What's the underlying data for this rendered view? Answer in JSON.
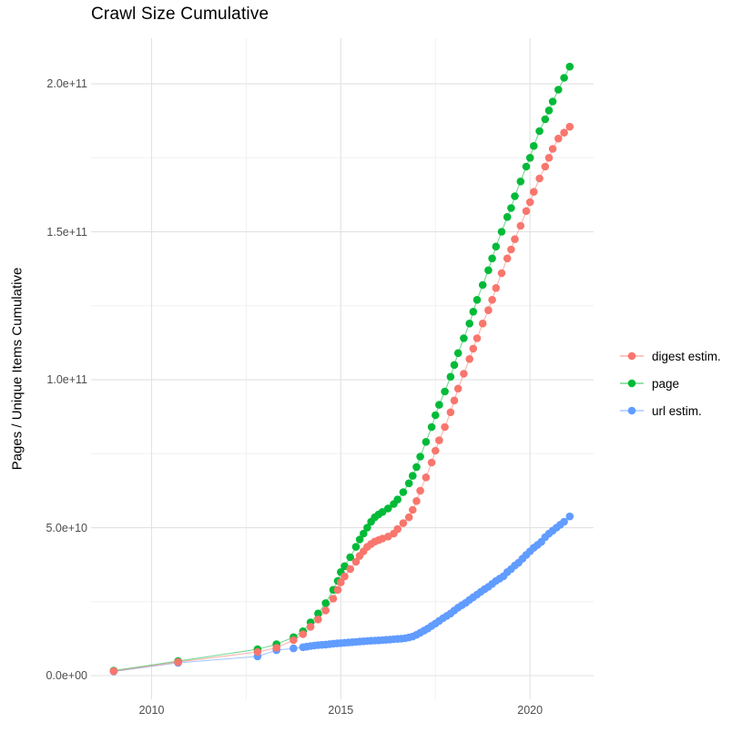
{
  "title": "Crawl Size Cumulative",
  "axes": {
    "y_label": "Pages / Unique Items Cumulative",
    "x_tick_labels": [
      "2010",
      "2015",
      "2020"
    ],
    "y_tick_labels": [
      "0.0e+00",
      "5.0e+10",
      "1.0e+11",
      "1.5e+11",
      "2.0e+11"
    ]
  },
  "legend": {
    "items": [
      {
        "label": "digest estim.",
        "color": "#F8766D"
      },
      {
        "label": "page",
        "color": "#00BA38"
      },
      {
        "label": "url estim.",
        "color": "#619CFF"
      }
    ]
  },
  "colors": {
    "background": "#FFFFFF",
    "grid_major": "#E2E2E2",
    "grid_minor": "#F0F0F0",
    "tick_text": "#4D4D4D",
    "title_text": "#000000"
  },
  "chart_data": {
    "type": "line",
    "title": "Crawl Size Cumulative",
    "xlabel": "",
    "ylabel": "Pages / Unique Items Cumulative",
    "x_domain": [
      2008.4,
      2021.68
    ],
    "y_domain_billions": [
      -8,
      215.4
    ],
    "y_scale_note": "values in billions (1e9) of pages / unique items",
    "grid": true,
    "legend_position": "right",
    "x_ticks": [
      {
        "value": 2010,
        "label": "2010"
      },
      {
        "value": 2015,
        "label": "2015"
      },
      {
        "value": 2020,
        "label": "2020"
      }
    ],
    "x_minor_ticks": [
      2012.5,
      2017.5
    ],
    "y_ticks": [
      {
        "value_billions": 0,
        "label": "0.0e+00"
      },
      {
        "value_billions": 50,
        "label": "5.0e+10"
      },
      {
        "value_billions": 100,
        "label": "1.0e+11"
      },
      {
        "value_billions": 150,
        "label": "1.5e+11"
      },
      {
        "value_billions": 200,
        "label": "2.0e+11"
      }
    ],
    "y_minor_ticks_billions": [
      25,
      75,
      125,
      175
    ],
    "series": [
      {
        "name": "page",
        "color": "#00BA38",
        "x": [
          2009.0,
          2010.7,
          2012.8,
          2013.3,
          2013.75,
          2014.0,
          2014.2,
          2014.4,
          2014.6,
          2014.8,
          2014.92,
          2015.0,
          2015.1,
          2015.25,
          2015.4,
          2015.5,
          2015.6,
          2015.7,
          2015.8,
          2015.9,
          2016.0,
          2016.1,
          2016.25,
          2016.4,
          2016.5,
          2016.65,
          2016.8,
          2016.9,
          2017.0,
          2017.1,
          2017.25,
          2017.4,
          2017.5,
          2017.6,
          2017.75,
          2017.9,
          2018.0,
          2018.1,
          2018.25,
          2018.4,
          2018.5,
          2018.6,
          2018.75,
          2018.9,
          2019.0,
          2019.1,
          2019.25,
          2019.4,
          2019.5,
          2019.6,
          2019.75,
          2019.9,
          2020.0,
          2020.1,
          2020.25,
          2020.4,
          2020.5,
          2020.6,
          2020.75,
          2020.9,
          2021.05
        ],
        "y_billions": [
          1.7,
          4.9,
          8.9,
          10.6,
          13,
          15,
          18,
          21,
          24.5,
          29,
          32,
          35,
          37,
          40,
          43.5,
          46,
          48,
          50,
          52,
          53.5,
          54.5,
          55.3,
          56.5,
          58,
          59.5,
          62,
          65,
          67.5,
          70.5,
          74,
          79,
          84,
          88,
          91.5,
          96,
          101,
          105,
          109,
          114,
          119,
          123,
          127,
          132,
          137,
          141,
          145,
          150,
          155,
          158,
          162,
          167,
          172,
          175,
          179,
          184,
          188,
          191,
          194,
          198,
          202,
          205.8
        ]
      },
      {
        "name": "url estim.",
        "color": "#619CFF",
        "x": [
          2009.0,
          2010.7,
          2012.8,
          2013.3,
          2013.75,
          2014.0,
          2014.1,
          2014.2,
          2014.3,
          2014.4,
          2014.5,
          2014.6,
          2014.7,
          2014.8,
          2014.9,
          2015.0,
          2015.1,
          2015.2,
          2015.3,
          2015.4,
          2015.5,
          2015.6,
          2015.7,
          2015.8,
          2015.9,
          2016.0,
          2016.1,
          2016.2,
          2016.3,
          2016.4,
          2016.5,
          2016.6,
          2016.7,
          2016.8,
          2016.9,
          2017.0,
          2017.1,
          2017.2,
          2017.3,
          2017.4,
          2017.5,
          2017.6,
          2017.7,
          2017.8,
          2017.9,
          2018.0,
          2018.1,
          2018.2,
          2018.3,
          2018.4,
          2018.5,
          2018.6,
          2018.7,
          2018.8,
          2018.9,
          2019.0,
          2019.1,
          2019.2,
          2019.3,
          2019.4,
          2019.5,
          2019.6,
          2019.7,
          2019.8,
          2019.9,
          2020.0,
          2020.1,
          2020.2,
          2020.3,
          2020.4,
          2020.5,
          2020.6,
          2020.7,
          2020.8,
          2020.9,
          2021.05
        ],
        "y_billions": [
          1.4,
          4.3,
          6.5,
          8.6,
          9.2,
          9.6,
          9.8,
          10.0,
          10.15,
          10.3,
          10.4,
          10.5,
          10.65,
          10.8,
          10.9,
          11.0,
          11.1,
          11.2,
          11.3,
          11.4,
          11.5,
          11.6,
          11.7,
          11.8,
          11.85,
          11.9,
          12.0,
          12.1,
          12.2,
          12.3,
          12.4,
          12.5,
          12.65,
          12.9,
          13.2,
          13.8,
          14.5,
          15.2,
          15.9,
          16.8,
          17.6,
          18.5,
          19.4,
          20.2,
          21.0,
          22.0,
          23.0,
          23.8,
          24.6,
          25.6,
          26.5,
          27.4,
          28.3,
          29.2,
          30.0,
          31.0,
          32.0,
          32.8,
          33.6,
          35.0,
          36.0,
          37.2,
          38.2,
          39.5,
          40.8,
          42.0,
          43.2,
          44.2,
          45.2,
          46.8,
          48.0,
          49.0,
          50.0,
          51.0,
          52.0,
          53.8
        ]
      },
      {
        "name": "digest estim.",
        "color": "#F8766D",
        "x": [
          2009.0,
          2010.7,
          2012.8,
          2013.3,
          2013.75,
          2014.0,
          2014.2,
          2014.4,
          2014.6,
          2014.8,
          2014.92,
          2015.0,
          2015.1,
          2015.25,
          2015.4,
          2015.5,
          2015.6,
          2015.7,
          2015.8,
          2015.9,
          2016.0,
          2016.1,
          2016.25,
          2016.4,
          2016.5,
          2016.65,
          2016.8,
          2016.9,
          2017.0,
          2017.1,
          2017.25,
          2017.4,
          2017.5,
          2017.6,
          2017.75,
          2017.9,
          2018.0,
          2018.1,
          2018.25,
          2018.4,
          2018.5,
          2018.6,
          2018.75,
          2018.9,
          2019.0,
          2019.1,
          2019.25,
          2019.4,
          2019.5,
          2019.6,
          2019.75,
          2019.9,
          2020.0,
          2020.1,
          2020.25,
          2020.4,
          2020.5,
          2020.6,
          2020.75,
          2020.9,
          2021.05
        ],
        "y_billions": [
          1.5,
          4.6,
          8.0,
          9.4,
          12,
          14,
          16.5,
          19,
          22,
          26,
          29,
          31.5,
          33.5,
          36,
          38.5,
          40.5,
          42,
          43.5,
          44.5,
          45.3,
          45.8,
          46.3,
          47,
          48,
          49.5,
          51.5,
          53.5,
          56,
          59,
          62.5,
          67,
          72,
          76,
          79.5,
          84,
          89,
          93,
          97,
          102,
          107,
          110.5,
          114,
          119,
          123.5,
          127,
          131,
          136,
          141,
          144,
          147.5,
          152,
          157,
          160,
          163.5,
          168,
          172,
          175,
          178,
          181.5,
          183.5,
          185.5
        ]
      }
    ]
  }
}
